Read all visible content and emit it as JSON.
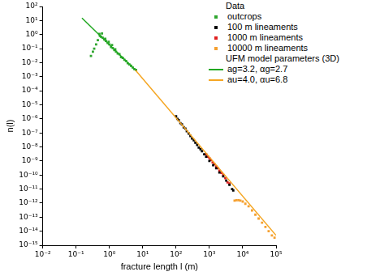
{
  "chart_data": {
    "type": "scatter",
    "x_label": "fracture length l (m)",
    "y_label": "n(l)",
    "log": true,
    "grid": false,
    "legend": "upper right",
    "xlim": [
      0.01,
      100000
    ],
    "ylim": [
      1e-15,
      100
    ],
    "xticks": [
      {
        "value": 0.01,
        "label": "10⁻²"
      },
      {
        "value": 0.1,
        "label": "10⁻¹"
      },
      {
        "value": 1,
        "label": "10⁰"
      },
      {
        "value": 10,
        "label": "10¹"
      },
      {
        "value": 100,
        "label": "10²"
      },
      {
        "value": 1000,
        "label": "10³"
      },
      {
        "value": 10000,
        "label": "10⁴"
      },
      {
        "value": 100000,
        "label": "10⁵"
      }
    ],
    "yticks": [
      {
        "value": 1e-15,
        "label": "10⁻¹⁵"
      },
      {
        "value": 1e-14,
        "label": "10⁻¹⁴"
      },
      {
        "value": 1e-13,
        "label": "10⁻¹³"
      },
      {
        "value": 1e-12,
        "label": "10⁻¹²"
      },
      {
        "value": 1e-11,
        "label": "10⁻¹¹"
      },
      {
        "value": 1e-10,
        "label": "10⁻¹⁰"
      },
      {
        "value": 1e-09,
        "label": "10⁻⁹"
      },
      {
        "value": 1e-08,
        "label": "10⁻⁸"
      },
      {
        "value": 1e-07,
        "label": "10⁻⁷"
      },
      {
        "value": 1e-06,
        "label": "10⁻⁶"
      },
      {
        "value": 1e-05,
        "label": "10⁻⁵"
      },
      {
        "value": 0.0001,
        "label": "10⁻⁴"
      },
      {
        "value": 0.001,
        "label": "10⁻³"
      },
      {
        "value": 0.01,
        "label": "10⁻²"
      },
      {
        "value": 0.1,
        "label": "10⁻¹"
      },
      {
        "value": 1,
        "label": "10⁰"
      },
      {
        "value": 10,
        "label": "10¹"
      },
      {
        "value": 100,
        "label": "10²"
      }
    ],
    "series": [
      {
        "name": "outcrops",
        "group": "Data",
        "type": "scatter",
        "marker": "square",
        "color": "#2ea62e",
        "x": [
          0.28,
          0.32,
          0.35,
          0.4,
          0.45,
          0.5,
          0.52,
          0.56,
          0.6,
          0.63,
          0.71,
          0.75,
          0.79,
          0.89,
          0.95,
          1.0,
          1.12,
          1.2,
          1.26,
          1.41,
          1.5,
          1.58,
          1.78,
          2.0,
          2.24,
          2.51,
          2.82,
          3.16,
          3.55,
          3.98,
          4.47,
          5.01,
          5.62,
          6.3
        ],
        "values": [
          0.03,
          0.06,
          0.1,
          0.2,
          0.4,
          1.1,
          0.8,
          0.7,
          1.2,
          0.6,
          0.45,
          0.5,
          0.35,
          0.25,
          0.3,
          0.2,
          0.13,
          0.18,
          0.11,
          0.08,
          0.09,
          0.06,
          0.045,
          0.04,
          0.025,
          0.022,
          0.016,
          0.013,
          0.009,
          0.0075,
          0.006,
          0.0045,
          0.0035,
          0.003
        ]
      },
      {
        "name": "100 m lineaments",
        "group": "Data",
        "type": "scatter",
        "marker": "square",
        "color": "#000000",
        "x": [
          100,
          110,
          120,
          135,
          150,
          170,
          190,
          210,
          240,
          270,
          300,
          340,
          380,
          430,
          480,
          540,
          600,
          700,
          800,
          1000,
          1300,
          1600,
          2000,
          2600,
          3200,
          4000,
          4800,
          5200
        ],
        "values": [
          1.5e-06,
          1e-06,
          8e-07,
          5e-07,
          4e-07,
          2.5e-07,
          2e-07,
          1.3e-07,
          9e-08,
          6e-08,
          4e-08,
          3e-08,
          2e-08,
          1.4e-08,
          9e-09,
          7e-09,
          5e-09,
          3e-09,
          2e-09,
          1e-09,
          5e-10,
          3e-10,
          1.5e-10,
          8e-11,
          4e-11,
          2e-11,
          1e-11,
          8e-12
        ]
      },
      {
        "name": "1000 m lineaments",
        "group": "Data",
        "type": "scatter",
        "marker": "square",
        "color": "#e02020",
        "x": [
          800,
          900,
          1000,
          1100,
          1250,
          1400,
          1600,
          1800,
          2000,
          2300,
          2600,
          3000,
          3500,
          4000
        ],
        "values": [
          3e-09,
          2e-09,
          1.6e-09,
          1.2e-09,
          8e-10,
          6e-10,
          4e-10,
          3e-10,
          2e-10,
          1.4e-10,
          1e-10,
          6e-11,
          3e-11,
          2.5e-11
        ]
      },
      {
        "name": "10000 m lineaments",
        "group": "Data",
        "type": "scatter",
        "marker": "square",
        "color": "#f5a030",
        "x": [
          5700,
          6500,
          7500,
          8500,
          10000,
          12000,
          15000,
          19000,
          24000,
          30000,
          38000,
          48000,
          60000,
          75000,
          90000
        ],
        "values": [
          1.5e-12,
          1.6e-12,
          1.6e-12,
          1.5e-12,
          1.3e-12,
          9e-13,
          6e-13,
          3e-13,
          1.5e-13,
          8e-14,
          4e-14,
          2e-14,
          1e-14,
          5e-15,
          3.5e-15
        ]
      },
      {
        "name": "ag=3.2, αg=2.7",
        "group": "UFM model parameters (3D)",
        "type": "line",
        "line_style": "solid",
        "color": "#22a822",
        "x": [
          0.15,
          6
        ],
        "values": [
          15,
          0.003
        ]
      },
      {
        "name": "au=4.0, αu=6.8",
        "group": "UFM model parameters (3D)",
        "type": "line",
        "line_style": "solid",
        "color": "#f5a623",
        "x": [
          6,
          100000
        ],
        "values": [
          0.003,
          5e-15
        ]
      }
    ]
  }
}
